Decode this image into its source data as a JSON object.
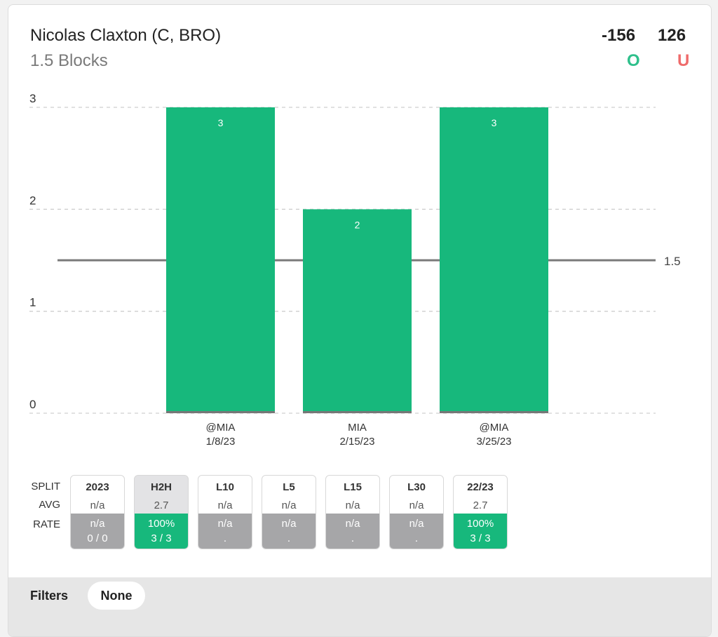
{
  "header": {
    "player": "Nicolas Claxton (C, BRO)",
    "market": "1.5 Blocks",
    "over_odds": "-156",
    "under_odds": "126",
    "over_label": "O",
    "under_label": "U"
  },
  "chart_data": {
    "type": "bar",
    "categories": [
      {
        "opponent": "@MIA",
        "date": "1/8/23"
      },
      {
        "opponent": "MIA",
        "date": "2/15/23"
      },
      {
        "opponent": "@MIA",
        "date": "3/25/23"
      }
    ],
    "values": [
      3,
      2,
      3
    ],
    "ylim": [
      0,
      3
    ],
    "yticks": [
      "0",
      "1",
      "2",
      "3"
    ],
    "line_value": 1.5,
    "line_label": "1.5",
    "grid": true,
    "bar_color": "#17b87c"
  },
  "splits": {
    "row_labels": {
      "split": "SPLIT",
      "avg": "AVG",
      "rate": "RATE"
    },
    "items": [
      {
        "label": "2023",
        "avg": "n/a",
        "rate_pct": "n/a",
        "rate_frac": "0 / 0",
        "good": false,
        "active": false
      },
      {
        "label": "H2H",
        "avg": "2.7",
        "rate_pct": "100%",
        "rate_frac": "3 / 3",
        "good": true,
        "active": true
      },
      {
        "label": "L10",
        "avg": "n/a",
        "rate_pct": "n/a",
        "rate_frac": ".",
        "good": false,
        "active": false
      },
      {
        "label": "L5",
        "avg": "n/a",
        "rate_pct": "n/a",
        "rate_frac": ".",
        "good": false,
        "active": false
      },
      {
        "label": "L15",
        "avg": "n/a",
        "rate_pct": "n/a",
        "rate_frac": ".",
        "good": false,
        "active": false
      },
      {
        "label": "L30",
        "avg": "n/a",
        "rate_pct": "n/a",
        "rate_frac": ".",
        "good": false,
        "active": false
      },
      {
        "label": "22/23",
        "avg": "2.7",
        "rate_pct": "100%",
        "rate_frac": "3 / 3",
        "good": true,
        "active": false
      }
    ]
  },
  "filters": {
    "label": "Filters",
    "value": "None"
  }
}
